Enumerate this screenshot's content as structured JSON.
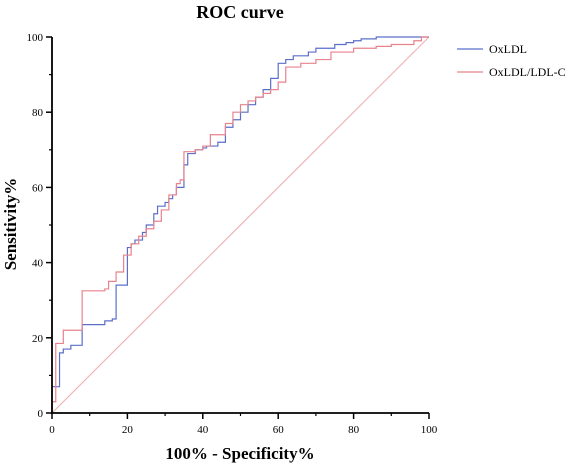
{
  "chart_data": {
    "type": "line",
    "title": "ROC curve",
    "xlabel": "100% - Specificity%",
    "ylabel": "Sensitivity%",
    "xlim": [
      0,
      100
    ],
    "ylim": [
      0,
      100
    ],
    "xticks": [
      "0",
      "20",
      "40",
      "60",
      "80",
      "100"
    ],
    "yticks": [
      "0",
      "20",
      "40",
      "60",
      "80",
      "100"
    ],
    "grid": false,
    "legend_position": "top-right",
    "colors": {
      "oxldl": "#5b6fc9",
      "ratio": "#e8828c",
      "reference": "#f0b0b0",
      "axis": "#000000"
    },
    "series": [
      {
        "name": "OxLDL",
        "x": [
          0,
          0,
          2,
          2,
          3,
          3,
          5,
          5,
          8,
          8,
          14,
          14,
          16,
          16,
          17,
          17,
          20,
          20,
          21,
          21,
          22,
          22,
          24,
          24,
          25,
          25,
          27,
          27,
          28,
          28,
          30,
          30,
          31,
          31,
          32,
          32,
          33,
          33,
          35,
          35,
          36,
          36,
          38,
          38,
          40,
          40,
          41,
          41,
          44,
          44,
          46,
          46,
          48,
          48,
          50,
          50,
          52,
          52,
          54,
          54,
          56,
          56,
          58,
          58,
          60,
          60,
          62,
          62,
          64,
          64,
          68,
          68,
          70,
          70,
          75,
          75,
          78,
          78,
          80,
          80,
          82,
          82,
          86,
          86,
          90,
          90,
          96,
          96,
          100
        ],
        "y": [
          0,
          7,
          7,
          16,
          16,
          17,
          17,
          18,
          18,
          23.5,
          23.5,
          24.5,
          24.5,
          25,
          25,
          34,
          34,
          44,
          44,
          45,
          45,
          46,
          46,
          48,
          48,
          50,
          50,
          53,
          53,
          55,
          55,
          56,
          56,
          57,
          57,
          58,
          58,
          60,
          60,
          66,
          66,
          69,
          69,
          70,
          70,
          70.5,
          70.5,
          71,
          71,
          72,
          72,
          76,
          76,
          78,
          78,
          80,
          80,
          82,
          82,
          84,
          84,
          86,
          86,
          89,
          89,
          93,
          93,
          94,
          94,
          95,
          95,
          96,
          96,
          97,
          97,
          98,
          98,
          98.5,
          98.5,
          99,
          99,
          99.5,
          99.5,
          100,
          100,
          100,
          100,
          100,
          100
        ]
      },
      {
        "name": "OxLDL/LDL-C",
        "x": [
          0,
          0,
          1,
          1,
          3,
          3,
          8,
          8,
          14,
          14,
          15,
          15,
          17,
          17,
          19,
          19,
          21,
          21,
          23,
          23,
          25,
          25,
          27,
          27,
          29,
          29,
          31,
          31,
          33,
          33,
          34,
          34,
          35,
          35,
          38,
          38,
          40,
          40,
          42,
          42,
          46,
          46,
          48,
          48,
          50,
          50,
          52,
          52,
          54,
          54,
          56,
          56,
          58,
          58,
          60,
          60,
          62,
          62,
          66,
          66,
          70,
          70,
          74,
          74,
          80,
          80,
          86,
          86,
          90,
          90,
          96,
          96,
          98,
          98,
          100
        ],
        "y": [
          0,
          3,
          3,
          18.5,
          18.5,
          22,
          22,
          32.5,
          32.5,
          33,
          33,
          35,
          35,
          37.5,
          37.5,
          42,
          42,
          45,
          45,
          47,
          47,
          49,
          49,
          51,
          51,
          54,
          54,
          58,
          58,
          61,
          61,
          62,
          62,
          69.5,
          69.5,
          70,
          70,
          71,
          71,
          74,
          74,
          77,
          77,
          80,
          80,
          82,
          82,
          83,
          83,
          84,
          84,
          85,
          85,
          86,
          86,
          88,
          88,
          92,
          92,
          93,
          93,
          94,
          94,
          96,
          96,
          97,
          97,
          97.5,
          97.5,
          98,
          98,
          99,
          99,
          100,
          100
        ]
      }
    ]
  }
}
